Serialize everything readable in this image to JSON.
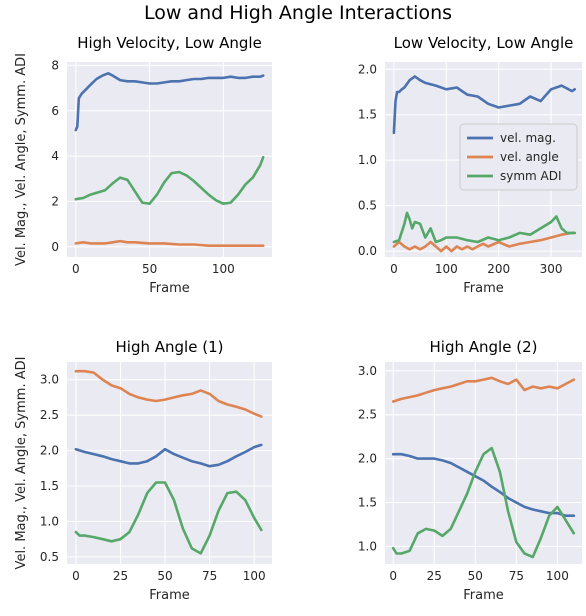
{
  "figure": {
    "title": "Low and High Angle Interactions"
  },
  "colors": {
    "panel_bg": "#eaeaf2",
    "grid": "#ffffff",
    "blue": "#4c72b0",
    "orange": "#dd8452",
    "green": "#55a868"
  },
  "legend": {
    "entries": [
      "vel. mag.",
      "vel. angle",
      "symm ADI"
    ]
  },
  "chart_data": [
    {
      "type": "line",
      "title": "High Velocity, Low Angle",
      "xlabel": "Frame",
      "ylabel": "Vel. Mag., Vel. Angle, Symm. ADI",
      "xlim": [
        -6,
        133
      ],
      "ylim": [
        -0.45,
        8.15
      ],
      "xticks": [
        0,
        50,
        100
      ],
      "yticks": [
        0,
        2,
        4,
        6,
        8
      ],
      "ytick_format": 0,
      "grid": true,
      "legend": false,
      "series": [
        {
          "color_key": "blue",
          "x": [
            0,
            1,
            2,
            4,
            7,
            10,
            14,
            18,
            22,
            25,
            30,
            35,
            40,
            45,
            50,
            55,
            60,
            65,
            70,
            75,
            80,
            85,
            90,
            95,
            100,
            105,
            110,
            115,
            120,
            125,
            127
          ],
          "y": [
            5.15,
            5.3,
            6.55,
            6.75,
            6.95,
            7.15,
            7.4,
            7.55,
            7.65,
            7.55,
            7.35,
            7.3,
            7.3,
            7.25,
            7.2,
            7.2,
            7.25,
            7.3,
            7.3,
            7.35,
            7.4,
            7.4,
            7.45,
            7.45,
            7.45,
            7.5,
            7.45,
            7.45,
            7.5,
            7.5,
            7.55
          ]
        },
        {
          "color_key": "orange",
          "x": [
            0,
            5,
            10,
            15,
            20,
            25,
            30,
            35,
            40,
            50,
            60,
            70,
            80,
            90,
            100,
            110,
            120,
            127
          ],
          "y": [
            0.15,
            0.2,
            0.15,
            0.15,
            0.15,
            0.2,
            0.25,
            0.2,
            0.2,
            0.15,
            0.15,
            0.1,
            0.1,
            0.05,
            0.05,
            0.05,
            0.05,
            0.05
          ]
        },
        {
          "color_key": "green",
          "x": [
            0,
            5,
            10,
            15,
            20,
            25,
            30,
            35,
            40,
            45,
            50,
            55,
            60,
            65,
            70,
            75,
            80,
            85,
            90,
            95,
            100,
            105,
            110,
            115,
            120,
            125,
            127
          ],
          "y": [
            2.1,
            2.15,
            2.3,
            2.4,
            2.5,
            2.8,
            3.05,
            2.95,
            2.45,
            1.95,
            1.9,
            2.3,
            2.85,
            3.25,
            3.3,
            3.15,
            2.9,
            2.6,
            2.3,
            2.05,
            1.9,
            1.95,
            2.3,
            2.75,
            3.05,
            3.6,
            3.95
          ]
        }
      ]
    },
    {
      "type": "line",
      "title": "Low Velocity, Low Angle",
      "xlabel": "Frame",
      "ylabel": "",
      "xlim": [
        -17,
        359
      ],
      "ylim": [
        -0.065,
        2.08
      ],
      "xticks": [
        0,
        100,
        200,
        300
      ],
      "yticks": [
        0.0,
        0.5,
        1.0,
        1.5,
        2.0
      ],
      "ytick_format": 1,
      "grid": true,
      "legend": true,
      "legend_position": "right",
      "series": [
        {
          "color_key": "blue",
          "x": [
            0,
            3,
            6,
            10,
            15,
            20,
            30,
            40,
            50,
            60,
            80,
            100,
            120,
            140,
            160,
            180,
            200,
            220,
            240,
            260,
            280,
            300,
            320,
            340,
            345
          ],
          "y": [
            1.3,
            1.65,
            1.75,
            1.75,
            1.78,
            1.8,
            1.88,
            1.92,
            1.88,
            1.85,
            1.82,
            1.78,
            1.8,
            1.72,
            1.7,
            1.62,
            1.58,
            1.6,
            1.62,
            1.7,
            1.65,
            1.78,
            1.82,
            1.76,
            1.78
          ]
        },
        {
          "color_key": "orange",
          "x": [
            0,
            10,
            20,
            30,
            40,
            50,
            60,
            70,
            80,
            90,
            100,
            110,
            120,
            130,
            140,
            150,
            160,
            170,
            180,
            200,
            220,
            240,
            260,
            280,
            300,
            320,
            340,
            345
          ],
          "y": [
            0.05,
            0.1,
            0.05,
            0.02,
            0.05,
            0.02,
            0.05,
            0.1,
            0.05,
            0.0,
            0.05,
            0.0,
            0.05,
            0.02,
            0.05,
            0.02,
            0.05,
            0.08,
            0.05,
            0.1,
            0.05,
            0.08,
            0.1,
            0.12,
            0.15,
            0.18,
            0.2,
            0.2
          ]
        },
        {
          "color_key": "green",
          "x": [
            0,
            10,
            20,
            25,
            30,
            35,
            40,
            50,
            60,
            70,
            80,
            90,
            100,
            120,
            140,
            160,
            180,
            200,
            220,
            240,
            260,
            280,
            300,
            310,
            320,
            330,
            340,
            345
          ],
          "y": [
            0.1,
            0.12,
            0.3,
            0.42,
            0.35,
            0.25,
            0.32,
            0.3,
            0.15,
            0.25,
            0.1,
            0.12,
            0.15,
            0.15,
            0.12,
            0.1,
            0.15,
            0.12,
            0.15,
            0.2,
            0.18,
            0.25,
            0.32,
            0.38,
            0.25,
            0.2,
            0.2,
            0.2
          ]
        }
      ]
    },
    {
      "type": "line",
      "title": "High Angle (1)",
      "xlabel": "Frame",
      "ylabel": "Vel. Mag., Vel. Angle, Symm. ADI",
      "xlim": [
        -5,
        110
      ],
      "ylim": [
        0.4,
        3.25
      ],
      "xticks": [
        0,
        25,
        50,
        75,
        100
      ],
      "yticks": [
        0.5,
        1.0,
        1.5,
        2.0,
        2.5,
        3.0
      ],
      "ytick_format": 1,
      "grid": true,
      "legend": false,
      "series": [
        {
          "color_key": "blue",
          "x": [
            0,
            5,
            10,
            15,
            20,
            25,
            30,
            35,
            40,
            45,
            50,
            55,
            60,
            65,
            70,
            75,
            80,
            85,
            90,
            95,
            100,
            104
          ],
          "y": [
            2.02,
            1.98,
            1.95,
            1.92,
            1.88,
            1.85,
            1.82,
            1.82,
            1.85,
            1.92,
            2.02,
            1.95,
            1.9,
            1.85,
            1.82,
            1.78,
            1.8,
            1.85,
            1.92,
            1.98,
            2.05,
            2.08
          ]
        },
        {
          "color_key": "orange",
          "x": [
            0,
            5,
            10,
            15,
            20,
            25,
            30,
            35,
            40,
            45,
            50,
            55,
            60,
            65,
            70,
            75,
            80,
            85,
            90,
            95,
            100,
            104
          ],
          "y": [
            3.12,
            3.12,
            3.1,
            3.0,
            2.92,
            2.88,
            2.8,
            2.75,
            2.72,
            2.7,
            2.72,
            2.75,
            2.78,
            2.8,
            2.85,
            2.8,
            2.7,
            2.65,
            2.62,
            2.58,
            2.52,
            2.48
          ]
        },
        {
          "color_key": "green",
          "x": [
            0,
            2,
            5,
            10,
            15,
            20,
            25,
            30,
            35,
            40,
            45,
            50,
            55,
            60,
            65,
            70,
            75,
            80,
            85,
            90,
            95,
            100,
            104
          ],
          "y": [
            0.85,
            0.8,
            0.8,
            0.78,
            0.75,
            0.72,
            0.75,
            0.85,
            1.1,
            1.4,
            1.55,
            1.55,
            1.3,
            0.9,
            0.62,
            0.55,
            0.8,
            1.15,
            1.4,
            1.42,
            1.3,
            1.05,
            0.88
          ]
        }
      ]
    },
    {
      "type": "line",
      "title": "High Angle (2)",
      "xlabel": "Frame",
      "ylabel": "",
      "xlim": [
        -5,
        115
      ],
      "ylim": [
        0.8,
        3.1
      ],
      "xticks": [
        0,
        25,
        50,
        75,
        100
      ],
      "yticks": [
        1.0,
        1.5,
        2.0,
        2.5,
        3.0
      ],
      "ytick_format": 1,
      "grid": true,
      "legend": false,
      "series": [
        {
          "color_key": "blue",
          "x": [
            0,
            5,
            10,
            15,
            20,
            25,
            30,
            35,
            40,
            45,
            50,
            55,
            60,
            65,
            70,
            75,
            80,
            85,
            90,
            95,
            100,
            105,
            110
          ],
          "y": [
            2.05,
            2.05,
            2.03,
            2.0,
            2.0,
            2.0,
            1.98,
            1.95,
            1.9,
            1.85,
            1.8,
            1.75,
            1.68,
            1.62,
            1.55,
            1.5,
            1.45,
            1.42,
            1.4,
            1.38,
            1.38,
            1.35,
            1.35
          ]
        },
        {
          "color_key": "orange",
          "x": [
            0,
            5,
            10,
            15,
            20,
            25,
            30,
            35,
            40,
            45,
            50,
            55,
            60,
            65,
            70,
            75,
            80,
            85,
            90,
            95,
            100,
            105,
            110
          ],
          "y": [
            2.65,
            2.68,
            2.7,
            2.72,
            2.75,
            2.78,
            2.8,
            2.82,
            2.85,
            2.88,
            2.88,
            2.9,
            2.92,
            2.88,
            2.85,
            2.9,
            2.78,
            2.82,
            2.8,
            2.82,
            2.8,
            2.85,
            2.9
          ]
        },
        {
          "color_key": "green",
          "x": [
            0,
            2,
            5,
            10,
            15,
            20,
            25,
            30,
            35,
            40,
            45,
            50,
            55,
            60,
            65,
            70,
            75,
            80,
            85,
            90,
            95,
            100,
            105,
            110
          ],
          "y": [
            0.98,
            0.92,
            0.92,
            0.95,
            1.15,
            1.2,
            1.18,
            1.12,
            1.2,
            1.4,
            1.6,
            1.85,
            2.05,
            2.12,
            1.85,
            1.4,
            1.05,
            0.92,
            0.88,
            1.1,
            1.35,
            1.45,
            1.3,
            1.15
          ]
        }
      ]
    }
  ]
}
